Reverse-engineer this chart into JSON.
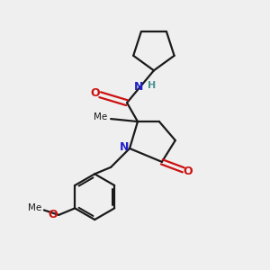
{
  "background_color": "#efefef",
  "bond_color": "#1a1a1a",
  "N_color": "#2020cc",
  "O_color": "#cc1010",
  "H_color": "#4a9090",
  "line_width": 1.6,
  "figsize": [
    3.0,
    3.0
  ],
  "dpi": 100,
  "xlim": [
    0,
    10
  ],
  "ylim": [
    0,
    10
  ]
}
